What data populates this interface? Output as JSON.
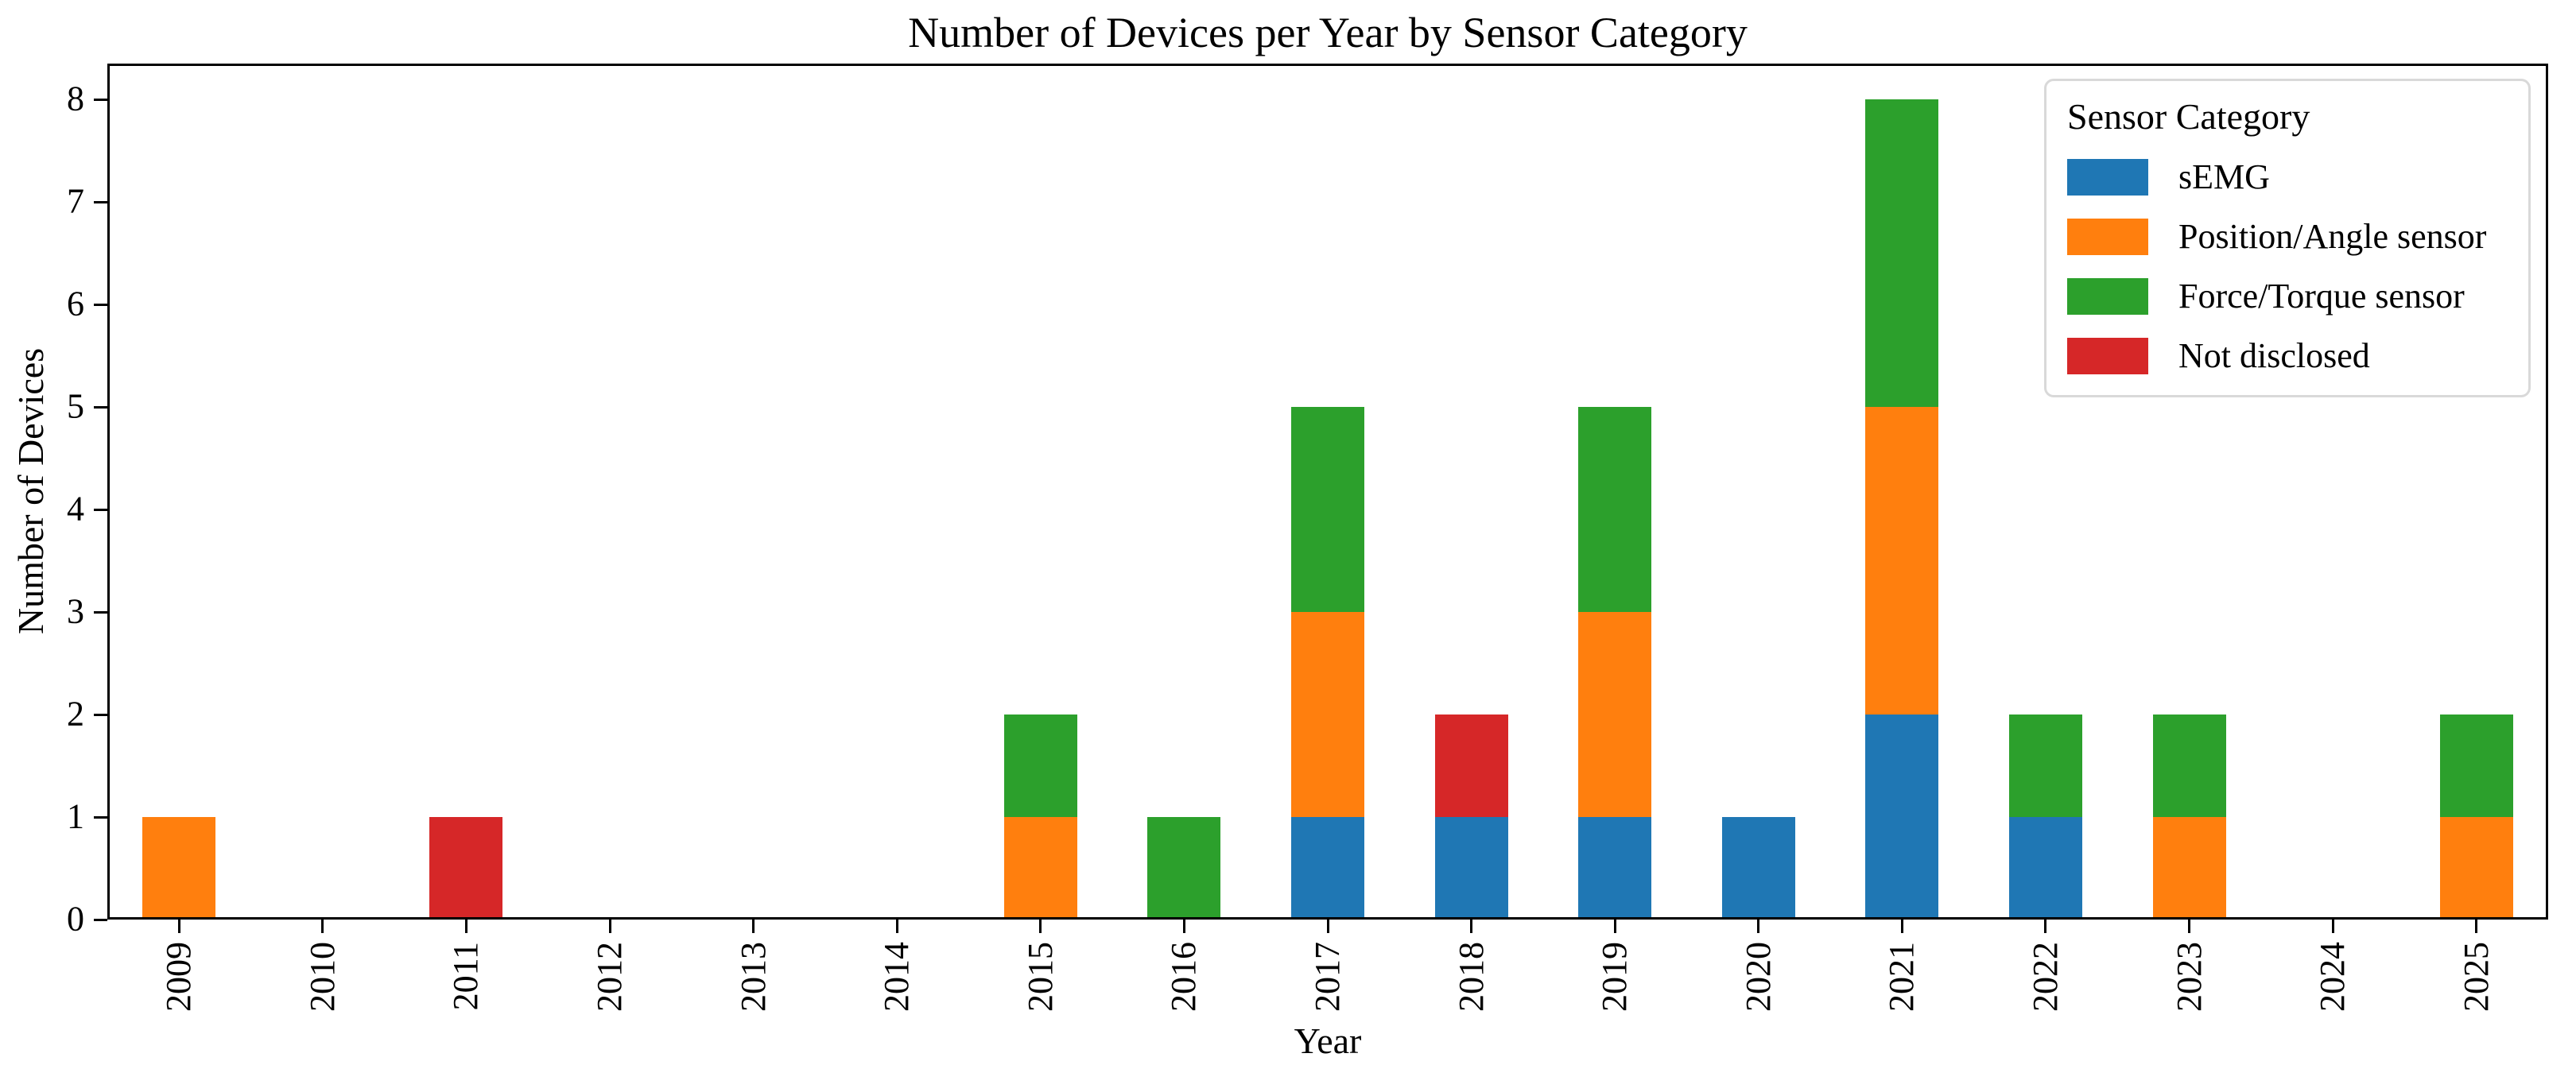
{
  "chart_data": {
    "type": "bar",
    "stacked": true,
    "title": "Number of Devices per Year by Sensor Category",
    "xlabel": "Year",
    "ylabel": "Number of Devices",
    "categories": [
      "2009",
      "2010",
      "2011",
      "2012",
      "2013",
      "2014",
      "2015",
      "2016",
      "2017",
      "2018",
      "2019",
      "2020",
      "2021",
      "2022",
      "2023",
      "2024",
      "2025"
    ],
    "series": [
      {
        "name": "sEMG",
        "color": "#1f77b4",
        "values": [
          0,
          0,
          0,
          0,
          0,
          0,
          0,
          0,
          1,
          1,
          1,
          1,
          2,
          1,
          0,
          0,
          0
        ]
      },
      {
        "name": "Position/Angle sensor",
        "color": "#ff7f0e",
        "values": [
          1,
          0,
          0,
          0,
          0,
          0,
          1,
          0,
          2,
          0,
          2,
          0,
          3,
          0,
          1,
          0,
          1
        ]
      },
      {
        "name": "Force/Torque sensor",
        "color": "#2ca02c",
        "values": [
          0,
          0,
          0,
          0,
          0,
          0,
          1,
          1,
          2,
          0,
          2,
          0,
          3,
          1,
          1,
          0,
          1
        ]
      },
      {
        "name": "Not disclosed",
        "color": "#d62728",
        "values": [
          0,
          0,
          1,
          0,
          0,
          0,
          0,
          0,
          0,
          1,
          0,
          0,
          0,
          0,
          0,
          0,
          0
        ]
      }
    ],
    "totals_per_year": [
      1,
      0,
      1,
      0,
      0,
      0,
      2,
      1,
      5,
      2,
      5,
      1,
      8,
      2,
      2,
      0,
      2
    ],
    "yticks": [
      0,
      1,
      2,
      3,
      4,
      5,
      6,
      7,
      8
    ],
    "ylim": [
      0,
      8.35
    ],
    "legend_title": "Sensor Category",
    "legend_position": "upper right",
    "grid": false,
    "axis_color": "#000000",
    "background_color": "#ffffff"
  }
}
